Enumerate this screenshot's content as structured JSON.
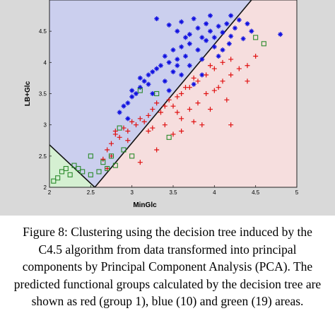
{
  "chart_data": {
    "type": "scatter",
    "title": "",
    "xlabel": "MinGlc",
    "ylabel": "LB+Glc",
    "xlim": [
      2,
      5
    ],
    "ylim": [
      2,
      5
    ],
    "xticks": [
      "2",
      "2.5",
      "3",
      "3.5",
      "4",
      "4.5",
      "5"
    ],
    "yticks": [
      "2",
      "2.5",
      "3",
      "3.5",
      "4",
      "4.5"
    ],
    "grid": false,
    "legend": "none",
    "regions": [
      {
        "group": "red (group 1)",
        "color": "#f6dede"
      },
      {
        "group": "blue (10)",
        "color": "#cbcfee"
      },
      {
        "group": "green (19)",
        "color": "#d5f0d2"
      }
    ],
    "boundaries": [
      {
        "from": [
          2.55,
          2.0
        ],
        "to": [
          4.45,
          5.0
        ]
      },
      {
        "from": [
          2.0,
          2.68
        ],
        "to": [
          2.55,
          2.0
        ]
      }
    ],
    "series": [
      {
        "color": "#1010e0",
        "marker": "star",
        "points": [
          [
            3.3,
            4.7
          ],
          [
            3.45,
            4.6
          ],
          [
            3.55,
            4.5
          ],
          [
            3.6,
            4.65
          ],
          [
            3.7,
            4.45
          ],
          [
            3.75,
            4.7
          ],
          [
            3.8,
            4.55
          ],
          [
            3.85,
            4.4
          ],
          [
            3.9,
            4.62
          ],
          [
            3.95,
            4.5
          ],
          [
            4.0,
            4.4
          ],
          [
            4.05,
            4.58
          ],
          [
            4.1,
            4.48
          ],
          [
            4.15,
            4.62
          ],
          [
            4.2,
            4.42
          ],
          [
            4.25,
            4.55
          ],
          [
            4.3,
            4.68
          ],
          [
            4.18,
            4.3
          ],
          [
            4.0,
            4.25
          ],
          [
            3.9,
            4.35
          ],
          [
            3.8,
            4.2
          ],
          [
            3.7,
            4.3
          ],
          [
            3.65,
            4.1
          ],
          [
            3.6,
            4.25
          ],
          [
            3.55,
            4.05
          ],
          [
            3.5,
            4.2
          ],
          [
            3.45,
            4.0
          ],
          [
            3.4,
            4.1
          ],
          [
            3.35,
            3.95
          ],
          [
            3.3,
            3.9
          ],
          [
            3.25,
            3.85
          ],
          [
            3.2,
            3.8
          ],
          [
            3.2,
            3.65
          ],
          [
            3.15,
            3.7
          ],
          [
            3.1,
            3.6
          ],
          [
            3.05,
            3.5
          ],
          [
            3.0,
            3.45
          ],
          [
            3.0,
            3.55
          ],
          [
            2.95,
            3.35
          ],
          [
            2.9,
            3.3
          ],
          [
            2.85,
            3.2
          ],
          [
            3.1,
            3.75
          ],
          [
            3.4,
            3.7
          ],
          [
            3.5,
            3.85
          ],
          [
            3.7,
            3.95
          ],
          [
            3.85,
            4.05
          ],
          [
            4.1,
            4.2
          ],
          [
            4.35,
            4.38
          ],
          [
            4.45,
            4.5
          ],
          [
            4.8,
            4.45
          ],
          [
            3.95,
            4.75
          ],
          [
            4.2,
            4.75
          ],
          [
            3.85,
            3.8
          ],
          [
            3.6,
            3.8
          ],
          [
            3.45,
            3.55
          ],
          [
            3.75,
            3.65
          ],
          [
            4.05,
            4.1
          ],
          [
            2.95,
            3.1
          ],
          [
            3.25,
            3.5
          ],
          [
            3.55,
            3.95
          ],
          [
            3.65,
            4.4
          ],
          [
            4.4,
            4.62
          ]
        ]
      },
      {
        "color": "#e01010",
        "marker": "plus",
        "points": [
          [
            3.6,
            3.5
          ],
          [
            3.7,
            3.6
          ],
          [
            3.8,
            3.7
          ],
          [
            3.9,
            3.8
          ],
          [
            4.0,
            3.9
          ],
          [
            4.1,
            4.0
          ],
          [
            4.2,
            4.05
          ],
          [
            3.95,
            3.95
          ],
          [
            3.75,
            3.75
          ],
          [
            3.65,
            3.6
          ],
          [
            3.55,
            3.45
          ],
          [
            3.45,
            3.4
          ],
          [
            3.4,
            3.3
          ],
          [
            3.3,
            3.35
          ],
          [
            3.35,
            3.2
          ],
          [
            3.25,
            3.25
          ],
          [
            3.2,
            3.15
          ],
          [
            3.15,
            3.05
          ],
          [
            3.1,
            3.1
          ],
          [
            3.05,
            3.0
          ],
          [
            3.0,
            3.05
          ],
          [
            2.95,
            2.9
          ],
          [
            2.9,
            2.95
          ],
          [
            2.85,
            2.8
          ],
          [
            2.8,
            2.85
          ],
          [
            2.75,
            2.7
          ],
          [
            2.7,
            2.6
          ],
          [
            2.75,
            2.5
          ],
          [
            2.8,
            2.9
          ],
          [
            2.65,
            2.45
          ],
          [
            3.5,
            3.3
          ],
          [
            3.6,
            3.1
          ],
          [
            3.7,
            3.25
          ],
          [
            3.8,
            3.35
          ],
          [
            3.9,
            3.5
          ],
          [
            4.0,
            3.55
          ],
          [
            4.1,
            3.7
          ],
          [
            4.2,
            3.8
          ],
          [
            4.3,
            3.9
          ],
          [
            4.4,
            3.95
          ],
          [
            4.5,
            4.1
          ],
          [
            4.4,
            3.7
          ],
          [
            3.85,
            3.0
          ],
          [
            4.2,
            3.0
          ],
          [
            3.3,
            2.6
          ],
          [
            3.1,
            2.4
          ],
          [
            2.7,
            2.3
          ],
          [
            3.5,
            2.85
          ],
          [
            3.6,
            2.9
          ],
          [
            3.95,
            3.25
          ],
          [
            4.15,
            3.4
          ],
          [
            3.25,
            2.95
          ],
          [
            2.95,
            2.75
          ],
          [
            3.4,
            3.0
          ],
          [
            3.75,
            3.05
          ],
          [
            4.05,
            3.6
          ],
          [
            3.55,
            3.2
          ],
          [
            3.2,
            2.9
          ]
        ]
      },
      {
        "color": "#2a8a2a",
        "marker": "square",
        "points": [
          [
            2.2,
            2.3
          ],
          [
            2.15,
            2.25
          ],
          [
            2.1,
            2.15
          ],
          [
            2.05,
            2.1
          ],
          [
            2.25,
            2.2
          ],
          [
            2.3,
            2.35
          ],
          [
            2.4,
            2.25
          ],
          [
            2.5,
            2.2
          ],
          [
            2.6,
            2.25
          ],
          [
            2.65,
            2.4
          ],
          [
            2.7,
            2.3
          ],
          [
            2.8,
            2.35
          ],
          [
            2.9,
            2.6
          ],
          [
            3.0,
            2.5
          ],
          [
            2.75,
            2.5
          ],
          [
            2.5,
            2.5
          ],
          [
            3.1,
            3.55
          ],
          [
            3.3,
            3.5
          ],
          [
            4.6,
            4.3
          ],
          [
            4.5,
            4.4
          ],
          [
            3.45,
            2.8
          ],
          [
            2.85,
            2.95
          ],
          [
            2.35,
            2.3
          ]
        ]
      }
    ]
  },
  "caption": "Figure 8: Clustering using the decision tree induced by the C4.5 algorithm from data transformed into principal components by Principal Component Analysis (PCA). The predicted functional groups calculated by the decision tree are shown as red (group 1), blue (10) and green (19) areas."
}
